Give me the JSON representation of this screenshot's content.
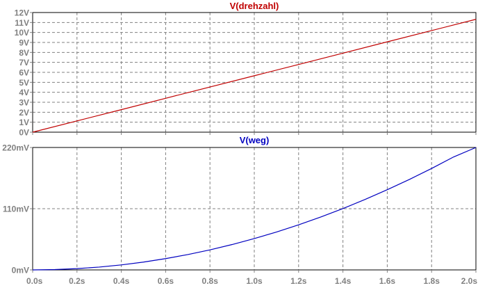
{
  "window": {
    "background": "#ffffff",
    "grid_color": "#808080",
    "frame_color": "#000000"
  },
  "chart_data": [
    {
      "type": "line",
      "title": "V(drehzahl)",
      "title_color": "#c00000",
      "xlabel": "",
      "ylabel": "",
      "xlim": [
        0,
        2.0
      ],
      "ylim": [
        0,
        12
      ],
      "grid": true,
      "y_ticks": [
        {
          "value": 0,
          "label": "0V"
        },
        {
          "value": 1,
          "label": "1V"
        },
        {
          "value": 2,
          "label": "2V"
        },
        {
          "value": 3,
          "label": "3V"
        },
        {
          "value": 4,
          "label": "4V"
        },
        {
          "value": 5,
          "label": "5V"
        },
        {
          "value": 6,
          "label": "6V"
        },
        {
          "value": 7,
          "label": "7V"
        },
        {
          "value": 8,
          "label": "8V"
        },
        {
          "value": 9,
          "label": "9V"
        },
        {
          "value": 10,
          "label": "10V"
        },
        {
          "value": 11,
          "label": "11V"
        },
        {
          "value": 12,
          "label": "12V"
        }
      ],
      "x_ticks": [
        0,
        0.2,
        0.4,
        0.6,
        0.8,
        1.0,
        1.2,
        1.4,
        1.6,
        1.8,
        2.0
      ],
      "series": [
        {
          "name": "V(drehzahl)",
          "color": "#c00000",
          "x": [
            0,
            0.2,
            0.4,
            0.6,
            0.8,
            1.0,
            1.2,
            1.4,
            1.6,
            1.8,
            2.0
          ],
          "y": [
            0,
            1.13,
            2.26,
            3.4,
            4.53,
            5.66,
            6.79,
            7.92,
            9.06,
            10.19,
            11.32
          ]
        }
      ]
    },
    {
      "type": "line",
      "title": "V(weg)",
      "title_color": "#0000c0",
      "xlabel": "",
      "ylabel": "",
      "xlim": [
        0,
        2.0
      ],
      "ylim": [
        0,
        220
      ],
      "grid": true,
      "y_ticks": [
        {
          "value": 0,
          "label": "0mV"
        },
        {
          "value": 110,
          "label": "110mV"
        },
        {
          "value": 220,
          "label": "220mV"
        }
      ],
      "x_ticks": [
        {
          "value": 0.0,
          "label": "0.0s"
        },
        {
          "value": 0.2,
          "label": "0.2s"
        },
        {
          "value": 0.4,
          "label": "0.4s"
        },
        {
          "value": 0.6,
          "label": "0.6s"
        },
        {
          "value": 0.8,
          "label": "0.8s"
        },
        {
          "value": 1.0,
          "label": "1.0s"
        },
        {
          "value": 1.2,
          "label": "1.2s"
        },
        {
          "value": 1.4,
          "label": "1.4s"
        },
        {
          "value": 1.6,
          "label": "1.6s"
        },
        {
          "value": 1.8,
          "label": "1.8s"
        },
        {
          "value": 2.0,
          "label": "2.0s"
        }
      ],
      "series": [
        {
          "name": "V(weg)",
          "color": "#0000c0",
          "x": [
            0,
            0.1,
            0.2,
            0.3,
            0.4,
            0.5,
            0.6,
            0.7,
            0.8,
            0.9,
            1.0,
            1.1,
            1.2,
            1.3,
            1.4,
            1.5,
            1.6,
            1.7,
            1.8,
            1.9,
            2.0
          ],
          "y": [
            0,
            0.6,
            2.3,
            5.1,
            9.0,
            14.1,
            20.3,
            27.6,
            36.0,
            45.6,
            56.3,
            68.1,
            81.0,
            95.1,
            110.3,
            126.6,
            144.1,
            162.6,
            182.3,
            203.1,
            225.1
          ]
        }
      ]
    }
  ]
}
